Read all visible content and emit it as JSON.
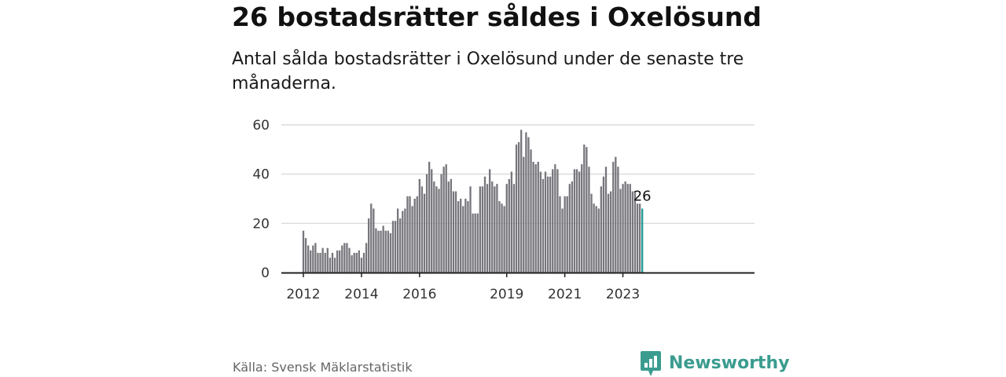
{
  "title": "26 bostadsrätter såldes i Oxelösund",
  "subtitle": "Antal sålda bostadsrätter i Oxelösund under de senaste tre månaderna.",
  "source": "Källa: Svensk Mäklarstatistik",
  "brand": {
    "name": "Newsworthy",
    "icon": "newsworthy-logo-icon",
    "color": "#3a9c8f"
  },
  "colors": {
    "bar": "#77767c",
    "highlight": "#1f9e96",
    "grid": "#d4d4d4",
    "axis": "#222222"
  },
  "chart_data": {
    "type": "bar",
    "title": "26 bostadsrätter såldes i Oxelösund",
    "subtitle": "Antal sålda bostadsrätter i Oxelösund under de senaste tre månaderna.",
    "xlabel": "",
    "ylabel": "",
    "ylim": [
      0,
      60
    ],
    "yticks": [
      0,
      20,
      40,
      60
    ],
    "xticks": [
      "2012",
      "2014",
      "2016",
      "2019",
      "2021",
      "2023"
    ],
    "grid": true,
    "legend": "none",
    "series": [
      {
        "values": [
          17,
          14,
          11,
          9,
          11,
          12,
          8,
          8,
          10,
          8,
          10,
          6,
          8,
          6,
          9,
          9,
          11,
          12,
          12,
          10,
          7,
          8,
          8,
          9,
          6,
          8,
          12,
          22,
          28,
          26,
          18,
          17,
          17,
          19,
          17,
          17,
          16,
          21,
          21,
          26,
          22,
          25,
          26,
          31,
          31,
          27,
          30,
          31,
          38,
          35,
          32,
          40,
          45,
          42,
          37,
          35,
          34,
          40,
          43,
          44,
          37,
          38,
          33,
          33,
          29,
          30,
          27,
          30,
          29,
          35,
          24,
          24,
          24,
          35,
          35,
          39,
          36,
          42,
          37,
          35,
          36,
          29,
          28,
          27,
          36,
          38,
          41,
          36,
          52,
          53,
          58,
          47,
          57,
          55,
          50,
          45,
          44,
          45,
          41,
          38,
          41,
          39,
          39,
          42,
          44,
          42,
          31,
          26,
          31,
          31,
          36,
          37,
          42,
          42,
          41,
          44,
          52,
          51,
          43,
          32,
          28,
          27,
          26,
          35,
          39,
          43,
          32,
          33,
          45,
          47,
          43,
          34,
          36,
          37,
          36,
          36,
          33,
          33,
          28,
          28,
          26
        ]
      }
    ],
    "annotations": [
      {
        "label": "26",
        "index": 140
      }
    ],
    "highlight_last": true
  }
}
